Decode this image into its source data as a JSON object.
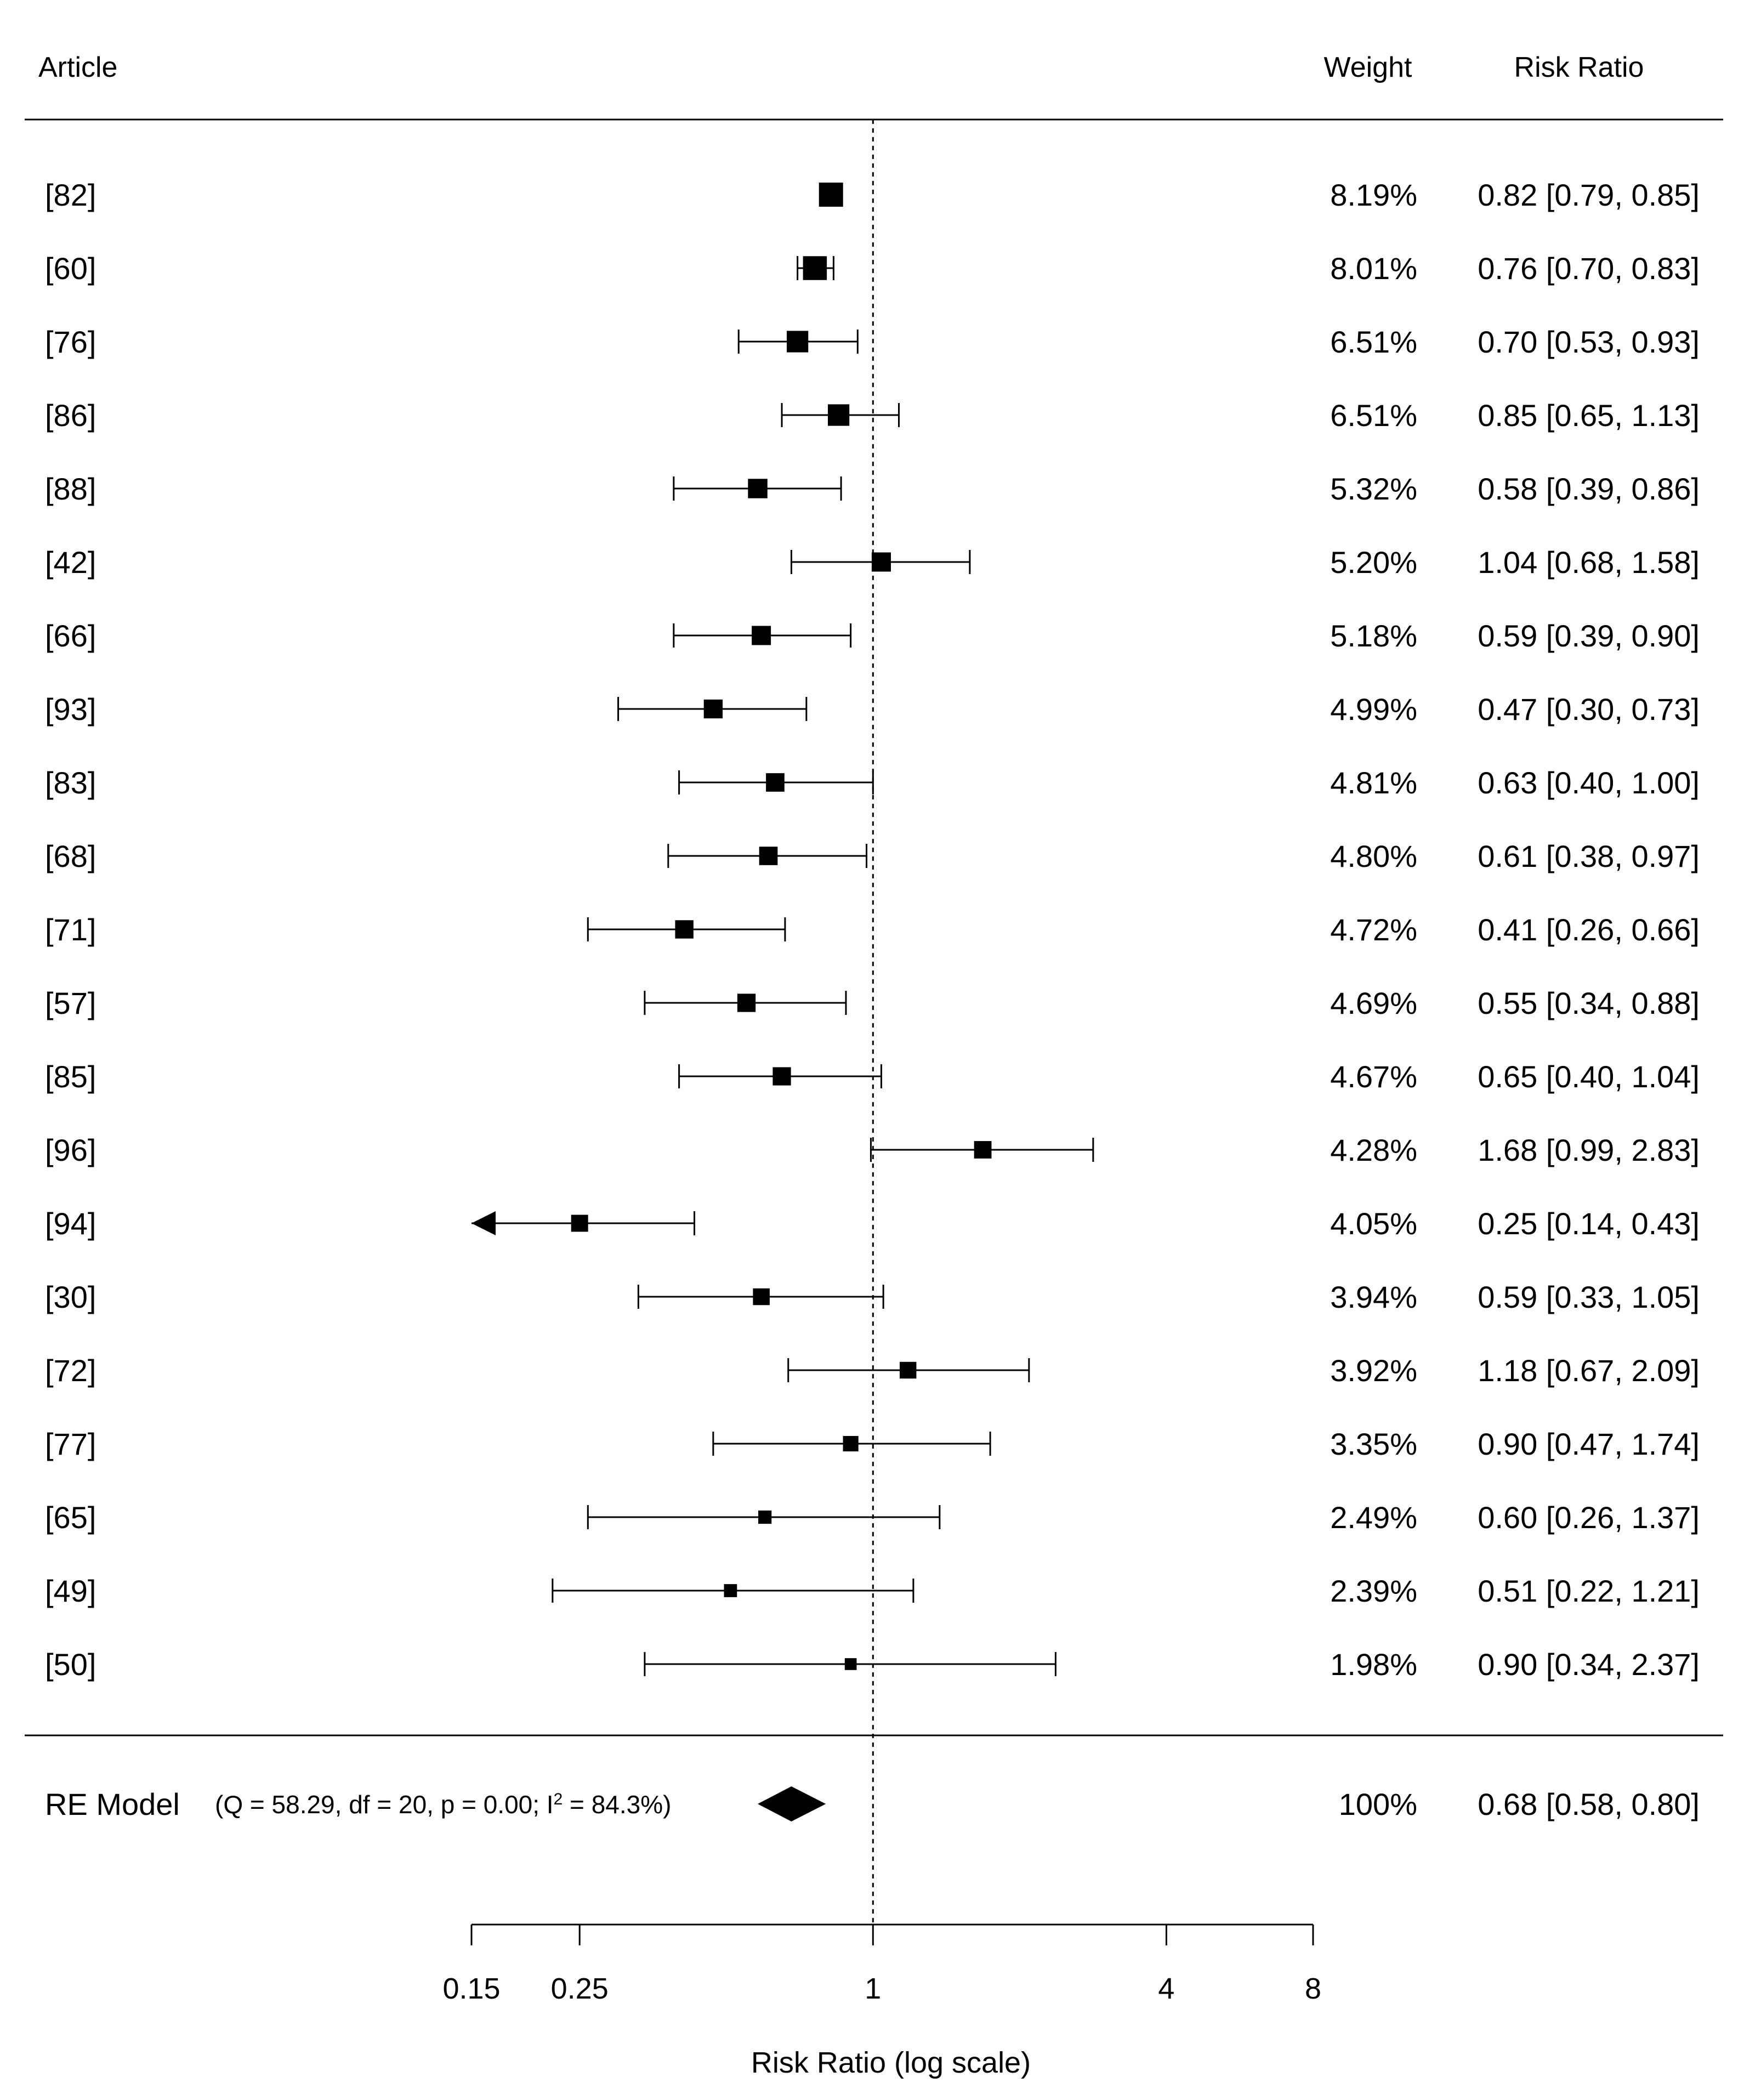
{
  "chart_data": {
    "type": "forest",
    "headers": {
      "study": "Article",
      "weight": "Weight",
      "effect": "Risk Ratio"
    },
    "studies": [
      {
        "label": "[82]",
        "weight": "8.19%",
        "text": "0.82 [0.79, 0.85]",
        "rr": 0.82,
        "lo": 0.79,
        "hi": 0.85,
        "w": 8.19
      },
      {
        "label": "[60]",
        "weight": "8.01%",
        "text": "0.76 [0.70, 0.83]",
        "rr": 0.76,
        "lo": 0.7,
        "hi": 0.83,
        "w": 8.01
      },
      {
        "label": "[76]",
        "weight": "6.51%",
        "text": "0.70 [0.53, 0.93]",
        "rr": 0.7,
        "lo": 0.53,
        "hi": 0.93,
        "w": 6.51
      },
      {
        "label": "[86]",
        "weight": "6.51%",
        "text": "0.85 [0.65, 1.13]",
        "rr": 0.85,
        "lo": 0.65,
        "hi": 1.13,
        "w": 6.51
      },
      {
        "label": "[88]",
        "weight": "5.32%",
        "text": "0.58 [0.39, 0.86]",
        "rr": 0.58,
        "lo": 0.39,
        "hi": 0.86,
        "w": 5.32
      },
      {
        "label": "[42]",
        "weight": "5.20%",
        "text": "1.04 [0.68, 1.58]",
        "rr": 1.04,
        "lo": 0.68,
        "hi": 1.58,
        "w": 5.2
      },
      {
        "label": "[66]",
        "weight": "5.18%",
        "text": "0.59 [0.39, 0.90]",
        "rr": 0.59,
        "lo": 0.39,
        "hi": 0.9,
        "w": 5.18
      },
      {
        "label": "[93]",
        "weight": "4.99%",
        "text": "0.47 [0.30, 0.73]",
        "rr": 0.47,
        "lo": 0.3,
        "hi": 0.73,
        "w": 4.99
      },
      {
        "label": "[83]",
        "weight": "4.81%",
        "text": "0.63 [0.40, 1.00]",
        "rr": 0.63,
        "lo": 0.4,
        "hi": 1.0,
        "w": 4.81
      },
      {
        "label": "[68]",
        "weight": "4.80%",
        "text": "0.61 [0.38, 0.97]",
        "rr": 0.61,
        "lo": 0.38,
        "hi": 0.97,
        "w": 4.8
      },
      {
        "label": "[71]",
        "weight": "4.72%",
        "text": "0.41 [0.26, 0.66]",
        "rr": 0.41,
        "lo": 0.26,
        "hi": 0.66,
        "w": 4.72
      },
      {
        "label": "[57]",
        "weight": "4.69%",
        "text": "0.55 [0.34, 0.88]",
        "rr": 0.55,
        "lo": 0.34,
        "hi": 0.88,
        "w": 4.69
      },
      {
        "label": "[85]",
        "weight": "4.67%",
        "text": "0.65 [0.40, 1.04]",
        "rr": 0.65,
        "lo": 0.4,
        "hi": 1.04,
        "w": 4.67
      },
      {
        "label": "[96]",
        "weight": "4.28%",
        "text": "1.68 [0.99, 2.83]",
        "rr": 1.68,
        "lo": 0.99,
        "hi": 2.83,
        "w": 4.28
      },
      {
        "label": "[94]",
        "weight": "4.05%",
        "text": "0.25 [0.14, 0.43]",
        "rr": 0.25,
        "lo": 0.14,
        "hi": 0.43,
        "w": 4.05
      },
      {
        "label": "[30]",
        "weight": "3.94%",
        "text": "0.59 [0.33, 1.05]",
        "rr": 0.59,
        "lo": 0.33,
        "hi": 1.05,
        "w": 3.94
      },
      {
        "label": "[72]",
        "weight": "3.92%",
        "text": "1.18 [0.67, 2.09]",
        "rr": 1.18,
        "lo": 0.67,
        "hi": 2.09,
        "w": 3.92
      },
      {
        "label": "[77]",
        "weight": "3.35%",
        "text": "0.90 [0.47, 1.74]",
        "rr": 0.9,
        "lo": 0.47,
        "hi": 1.74,
        "w": 3.35
      },
      {
        "label": "[65]",
        "weight": "2.49%",
        "text": "0.60 [0.26, 1.37]",
        "rr": 0.6,
        "lo": 0.26,
        "hi": 1.37,
        "w": 2.49
      },
      {
        "label": "[49]",
        "weight": "2.39%",
        "text": "0.51 [0.22, 1.21]",
        "rr": 0.51,
        "lo": 0.22,
        "hi": 1.21,
        "w": 2.39
      },
      {
        "label": "[50]",
        "weight": "1.98%",
        "text": "0.90 [0.34, 2.37]",
        "rr": 0.9,
        "lo": 0.34,
        "hi": 2.37,
        "w": 1.98
      }
    ],
    "summary": {
      "label": "RE Model",
      "stats_prefix": "(Q = 58.29, df = 20, p = 0.00; I",
      "stats_sup": "2",
      "stats_suffix": " = 84.3%)",
      "weight": "100%",
      "text": "0.68 [0.58, 0.80]",
      "rr": 0.68,
      "lo": 0.58,
      "hi": 0.8
    },
    "x_axis": {
      "label": "Risk Ratio (log scale)",
      "scale": "log",
      "ticks": [
        {
          "value": 0.15,
          "label": "0.15"
        },
        {
          "value": 0.25,
          "label": "0.25"
        },
        {
          "value": 1,
          "label": "1"
        },
        {
          "value": 4,
          "label": "4"
        },
        {
          "value": 8,
          "label": "8"
        }
      ],
      "xlim": [
        0.15,
        8
      ],
      "reference_line": 1
    },
    "colors": {
      "ink": "#000000",
      "background": "#ffffff"
    }
  }
}
